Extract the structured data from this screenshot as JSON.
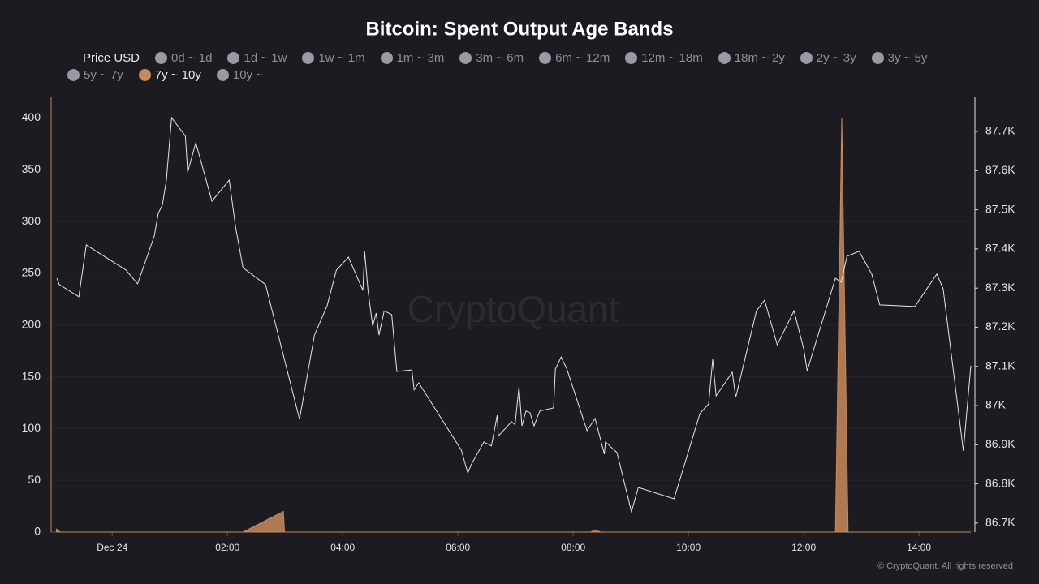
{
  "chart_data": {
    "type": "line",
    "title": "Bitcoin: Spent Output Age Bands",
    "watermark": "CryptoQuant",
    "copyright": "© CryptoQuant. All rights reserved",
    "xlim": [
      -1.06,
      14.9
    ],
    "xticks": [
      {
        "value": 0,
        "label": "Dec 24"
      },
      {
        "value": 2,
        "label": "02:00"
      },
      {
        "value": 4,
        "label": "04:00"
      },
      {
        "value": 6,
        "label": "06:00"
      },
      {
        "value": 8,
        "label": "08:00"
      },
      {
        "value": 10,
        "label": "10:00"
      },
      {
        "value": 12,
        "label": "12:00"
      },
      {
        "value": 14,
        "label": "14:00"
      }
    ],
    "ylim": [
      0,
      420
    ],
    "yticks": [
      0,
      50,
      100,
      150,
      200,
      250,
      300,
      350,
      400
    ],
    "y2lim": [
      86677,
      87787
    ],
    "y2ticks": [
      {
        "value": 86700,
        "label": "86.7K"
      },
      {
        "value": 86800,
        "label": "86.8K"
      },
      {
        "value": 86900,
        "label": "86.9K"
      },
      {
        "value": 87000,
        "label": "87K"
      },
      {
        "value": 87100,
        "label": "87.1K"
      },
      {
        "value": 87200,
        "label": "87.2K"
      },
      {
        "value": 87300,
        "label": "87.3K"
      },
      {
        "value": 87400,
        "label": "87.4K"
      },
      {
        "value": 87500,
        "label": "87.5K"
      },
      {
        "value": 87600,
        "label": "87.6K"
      },
      {
        "value": 87700,
        "label": "87.7K"
      }
    ],
    "grid": true,
    "series": [
      {
        "name": "Price USD",
        "type": "line",
        "axis": "y2",
        "color": "#e6e6e6",
        "visible": true,
        "x": [
          -0.96,
          -0.92,
          -0.58,
          -0.45,
          0.24,
          0.44,
          0.73,
          0.8,
          0.87,
          0.94,
          1.03,
          1.27,
          1.31,
          1.45,
          1.73,
          2.03,
          2.14,
          2.27,
          2.66,
          3.25,
          3.51,
          3.73,
          3.89,
          4.1,
          4.35,
          4.38,
          4.44,
          4.52,
          4.58,
          4.63,
          4.72,
          4.85,
          4.94,
          5.2,
          5.24,
          5.32,
          6.06,
          6.17,
          6.23,
          6.45,
          6.58,
          6.68,
          6.7,
          6.93,
          6.99,
          7.06,
          7.11,
          7.18,
          7.25,
          7.32,
          7.42,
          7.66,
          7.69,
          7.79,
          7.89,
          8.24,
          8.38,
          8.54,
          8.56,
          8.76,
          9.01,
          9.13,
          9.75,
          10.2,
          10.35,
          10.42,
          10.48,
          10.76,
          10.82,
          11.18,
          11.32,
          11.54,
          11.83,
          12.0,
          12.06,
          12.55,
          12.65,
          12.75,
          12.96,
          13.18,
          13.32,
          13.93,
          14.31,
          14.42,
          14.77,
          14.9
        ],
        "values": [
          87325,
          87309,
          87278,
          87410,
          87346,
          87311,
          87433,
          87491,
          87512,
          87576,
          87735,
          87688,
          87596,
          87671,
          87522,
          87576,
          87456,
          87352,
          87309,
          86965,
          87180,
          87255,
          87346,
          87379,
          87294,
          87394,
          87294,
          87203,
          87236,
          87180,
          87242,
          87232,
          87087,
          87091,
          87040,
          87058,
          86886,
          86828,
          86849,
          86907,
          86897,
          86975,
          86922,
          86959,
          86951,
          87048,
          86948,
          86986,
          86982,
          86948,
          86986,
          86994,
          87093,
          87124,
          87093,
          86936,
          86967,
          86876,
          86907,
          86880,
          86729,
          86791,
          86762,
          86980,
          87004,
          87118,
          87025,
          87085,
          87021,
          87242,
          87269,
          87155,
          87242,
          87145,
          87089,
          87325,
          87315,
          87381,
          87394,
          87336,
          87257,
          87253,
          87336,
          87298,
          86884,
          87102
        ]
      },
      {
        "name": "0d ~ 1d",
        "color": "#9b9aa3",
        "visible": false
      },
      {
        "name": "1d ~ 1w",
        "color": "#9b9aa3",
        "visible": false
      },
      {
        "name": "1w ~ 1m",
        "color": "#9b9aa3",
        "visible": false
      },
      {
        "name": "1m ~ 3m",
        "color": "#9b9aa3",
        "visible": false
      },
      {
        "name": "3m ~ 6m",
        "color": "#9b9aa3",
        "visible": false
      },
      {
        "name": "6m ~ 12m",
        "color": "#9b9aa3",
        "visible": false
      },
      {
        "name": "12m ~ 18m",
        "color": "#9b9aa3",
        "visible": false
      },
      {
        "name": "18m ~ 2y",
        "color": "#9b9aa3",
        "visible": false
      },
      {
        "name": "2y ~ 3y",
        "color": "#9b9aa3",
        "visible": false
      },
      {
        "name": "3y ~ 5y",
        "color": "#9b9aa3",
        "visible": false
      },
      {
        "name": "5y ~ 7y",
        "color": "#9b9aa3",
        "visible": false
      },
      {
        "name": "7y ~ 10y",
        "type": "area",
        "axis": "y",
        "color": "#c8895c",
        "visible": true,
        "x": [
          -0.97,
          -0.9,
          2.27,
          2.97,
          2.99,
          8.3,
          8.38,
          8.48,
          12.55,
          12.66,
          12.77,
          14.9
        ],
        "values": [
          3,
          0,
          0,
          20,
          0,
          0,
          2,
          0,
          0,
          400,
          0,
          0
        ]
      },
      {
        "name": "10y ~",
        "color": "#9b9aa3",
        "visible": false
      }
    ]
  }
}
